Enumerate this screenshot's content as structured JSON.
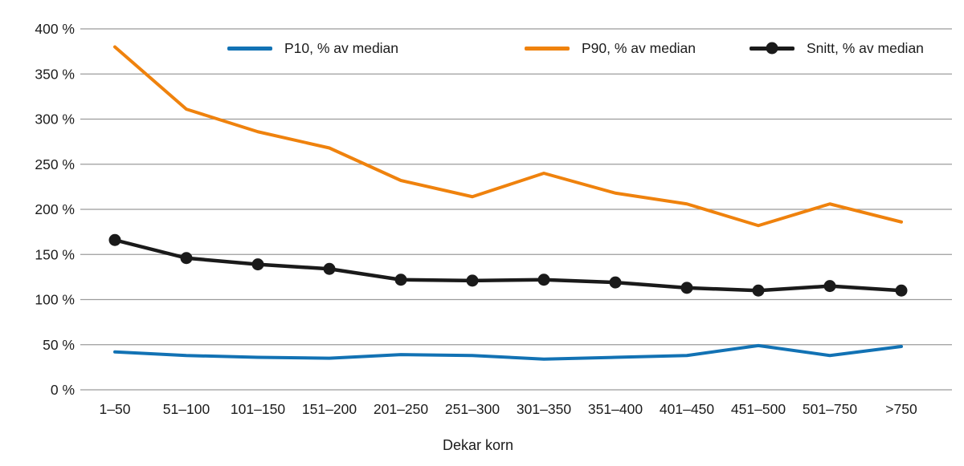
{
  "chart_data": {
    "type": "line",
    "title": "",
    "xlabel": "Dekar korn",
    "ylabel": "",
    "categories": [
      "1–50",
      "51–100",
      "101–150",
      "151–200",
      "201–250",
      "251–300",
      "301–350",
      "351–400",
      "401–450",
      "451–500",
      "501–750",
      ">750"
    ],
    "y_axis": {
      "min": 0,
      "max": 400,
      "step": 50,
      "unit": "%"
    },
    "y_ticks": [
      "0 %",
      "50 %",
      "100 %",
      "150 %",
      "200 %",
      "250 %",
      "300 %",
      "350 %",
      "400 %"
    ],
    "grid": true,
    "legend_position": "top-inside",
    "series": [
      {
        "name": "P10, % av median",
        "color": "#1272b4",
        "marker": "none",
        "values": [
          42,
          38,
          36,
          35,
          39,
          38,
          34,
          36,
          38,
          49,
          38,
          48
        ]
      },
      {
        "name": "P90, % av median",
        "color": "#ef820d",
        "marker": "none",
        "values": [
          380,
          311,
          286,
          268,
          232,
          214,
          240,
          218,
          206,
          182,
          206,
          186
        ]
      },
      {
        "name": "Snitt, % av median",
        "color": "#1a1a1a",
        "marker": "circle",
        "values": [
          166,
          146,
          139,
          134,
          122,
          121,
          122,
          119,
          113,
          110,
          115,
          110
        ]
      }
    ]
  }
}
